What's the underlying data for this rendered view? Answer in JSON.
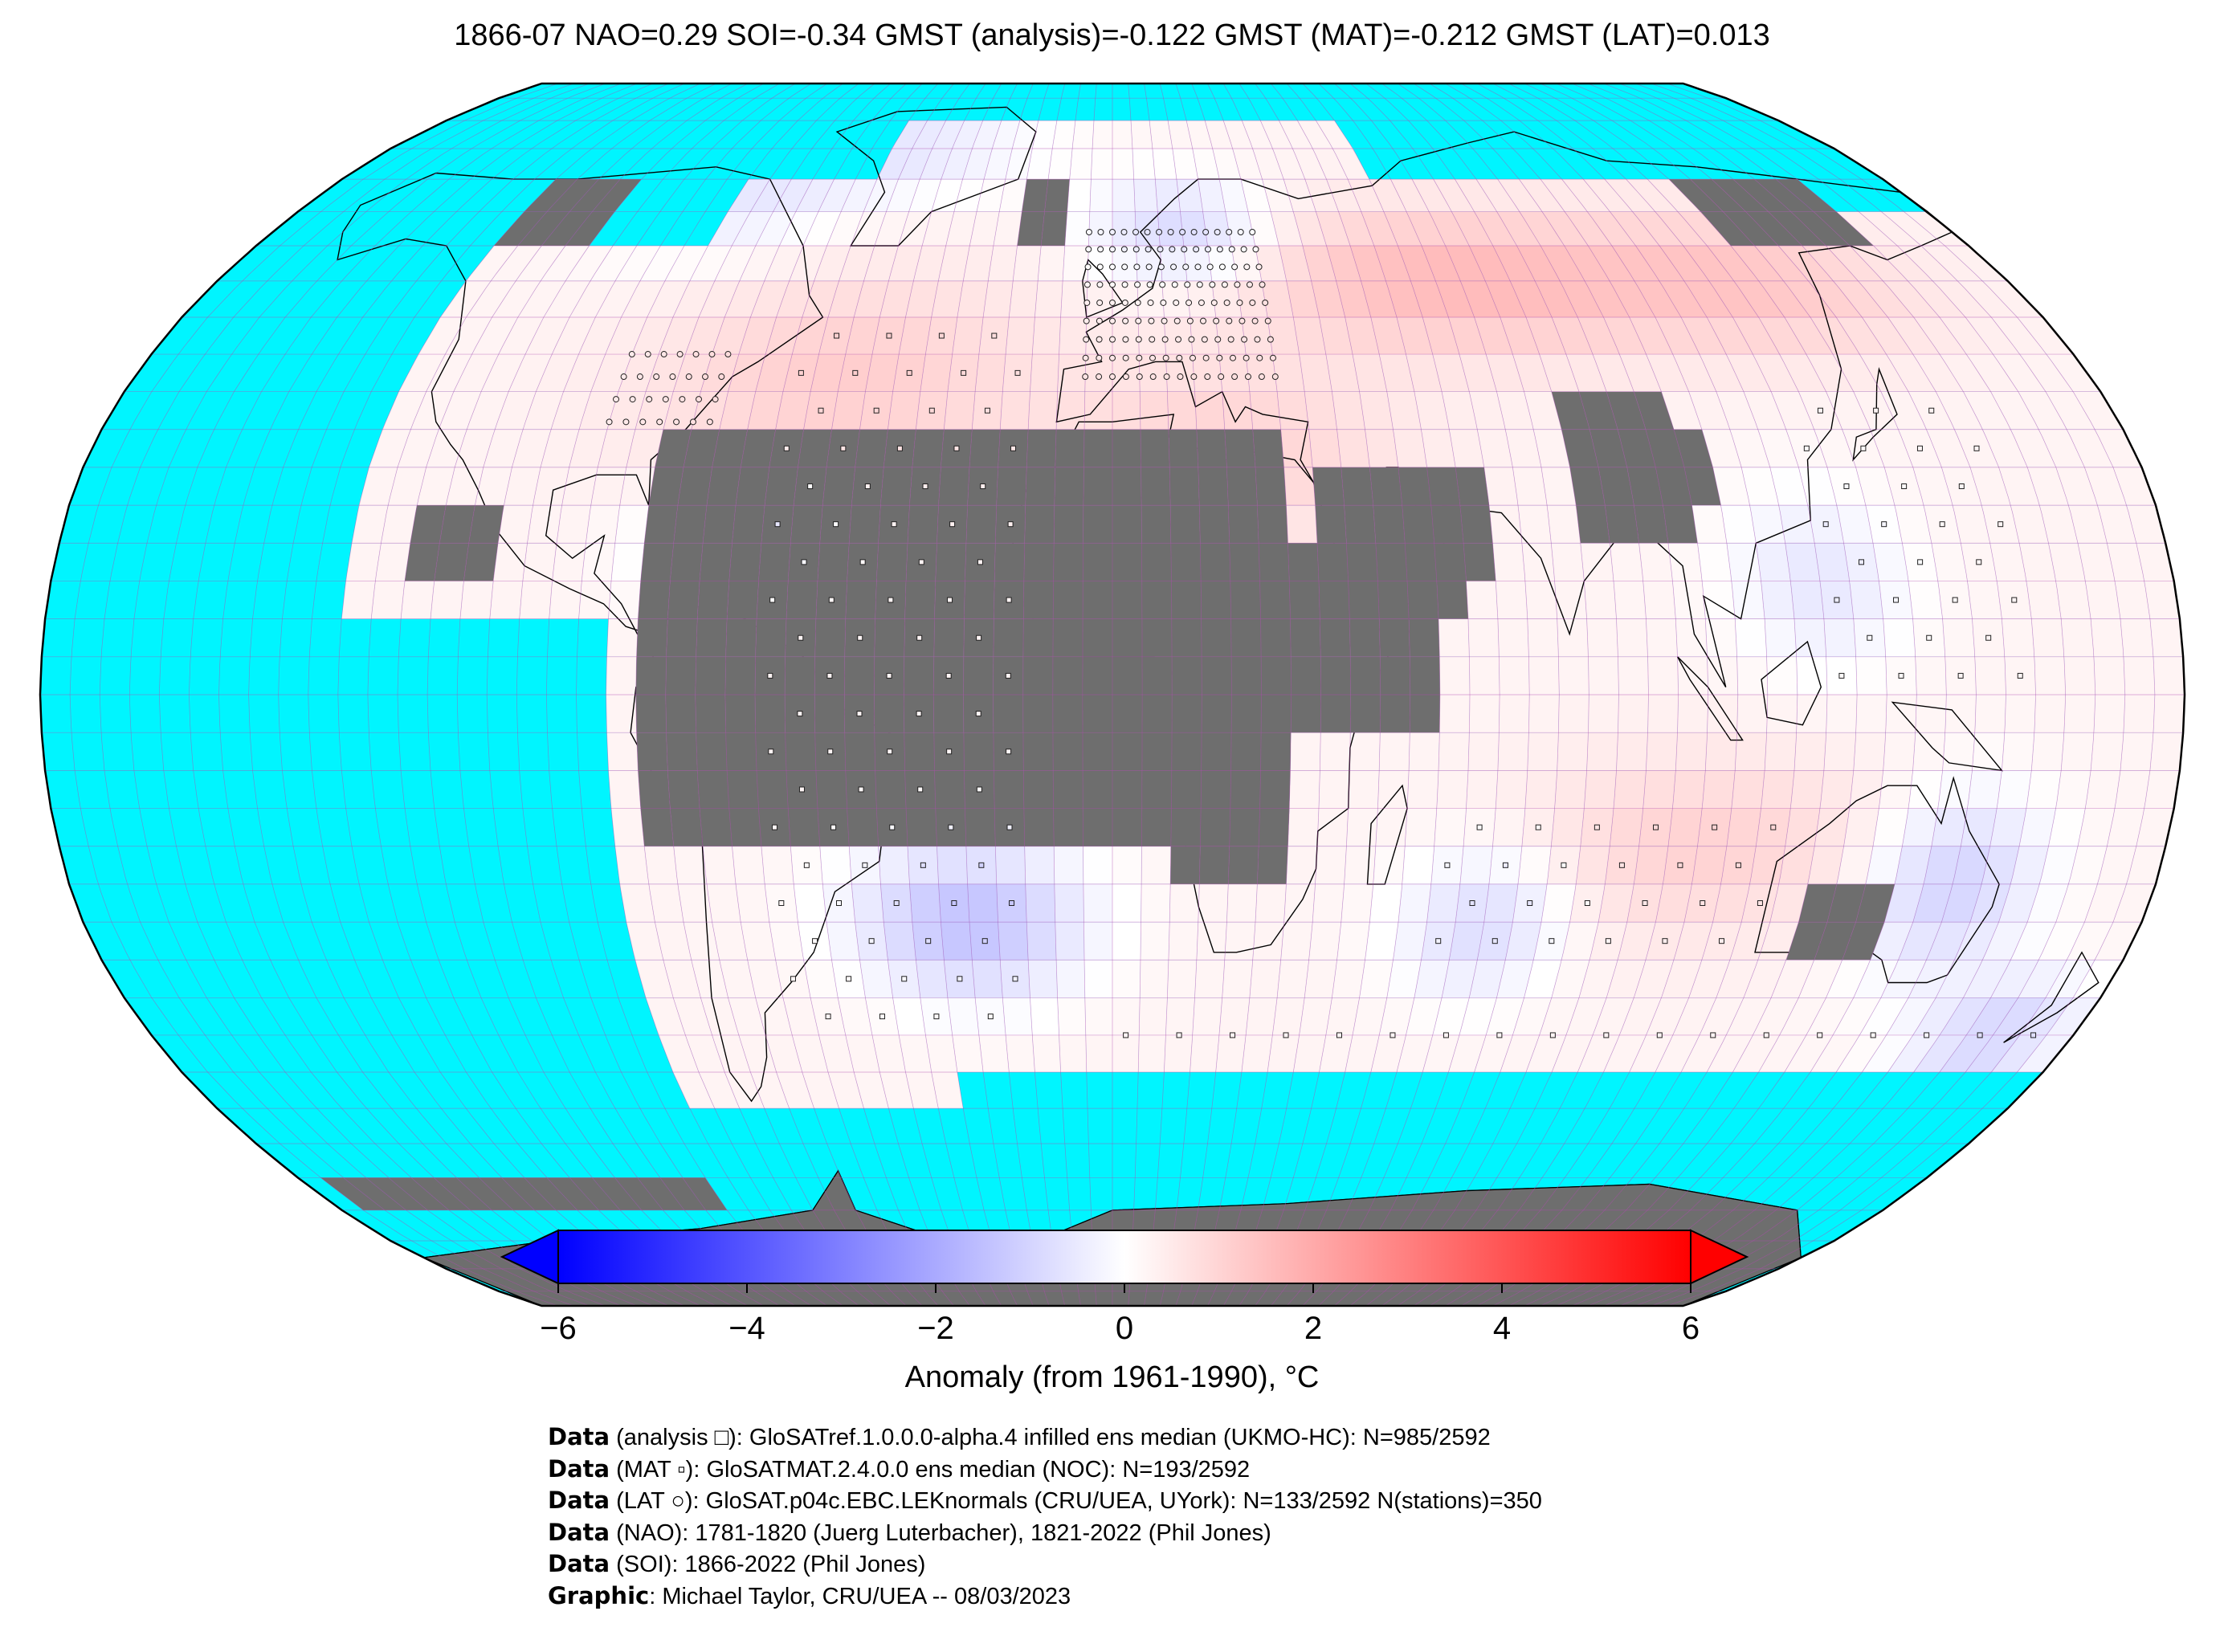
{
  "title": "1866-07 NAO=0.29 SOI=-0.34 GMST (analysis)=-0.122 GMST (MAT)=-0.212 GMST (LAT)=0.013",
  "map": {
    "projection": "Robinson (global)",
    "ocean_color": "#00f5ff",
    "land_nodata_color": "#6e6e6e",
    "gridline_color": "#b04bb0",
    "coastline_color": "#000000"
  },
  "colorbar": {
    "label": "Anomaly (from 1961-1990), °C",
    "min": -6,
    "max": 6,
    "ticks": [
      "−6",
      "−4",
      "−2",
      "0",
      "2",
      "4",
      "6"
    ],
    "tick_values": [
      -6,
      -4,
      -2,
      0,
      2,
      4,
      6
    ],
    "colormap": "bwr",
    "extend": "both",
    "colors": {
      "low": "#0000ff",
      "mid": "#ffffff",
      "high": "#ff0000"
    }
  },
  "credits": [
    {
      "bold": "Data",
      "text": " (analysis □): GloSATref.1.0.0.0-alpha.4 infilled ens median (UKMO-HC): N=985/2592"
    },
    {
      "bold": "Data",
      "text": " (MAT ▫): GloSATMAT.2.4.0.0 ens median (NOC): N=193/2592"
    },
    {
      "bold": "Data",
      "text": " (LAT ○): GloSAT.p04c.EBC.LEKnormals (CRU/UEA, UYork): N=133/2592 N(stations)=350"
    },
    {
      "bold": "Data",
      "text": " (NAO): 1781-1820 (Juerg Luterbacher), 1821-2022 (Phil Jones)"
    },
    {
      "bold": "Data",
      "text": " (SOI): 1866-2022 (Phil Jones)"
    },
    {
      "bold": "Graphic",
      "text": ": Michael Taylor, CRU/UEA -- 08/03/2023"
    }
  ]
}
